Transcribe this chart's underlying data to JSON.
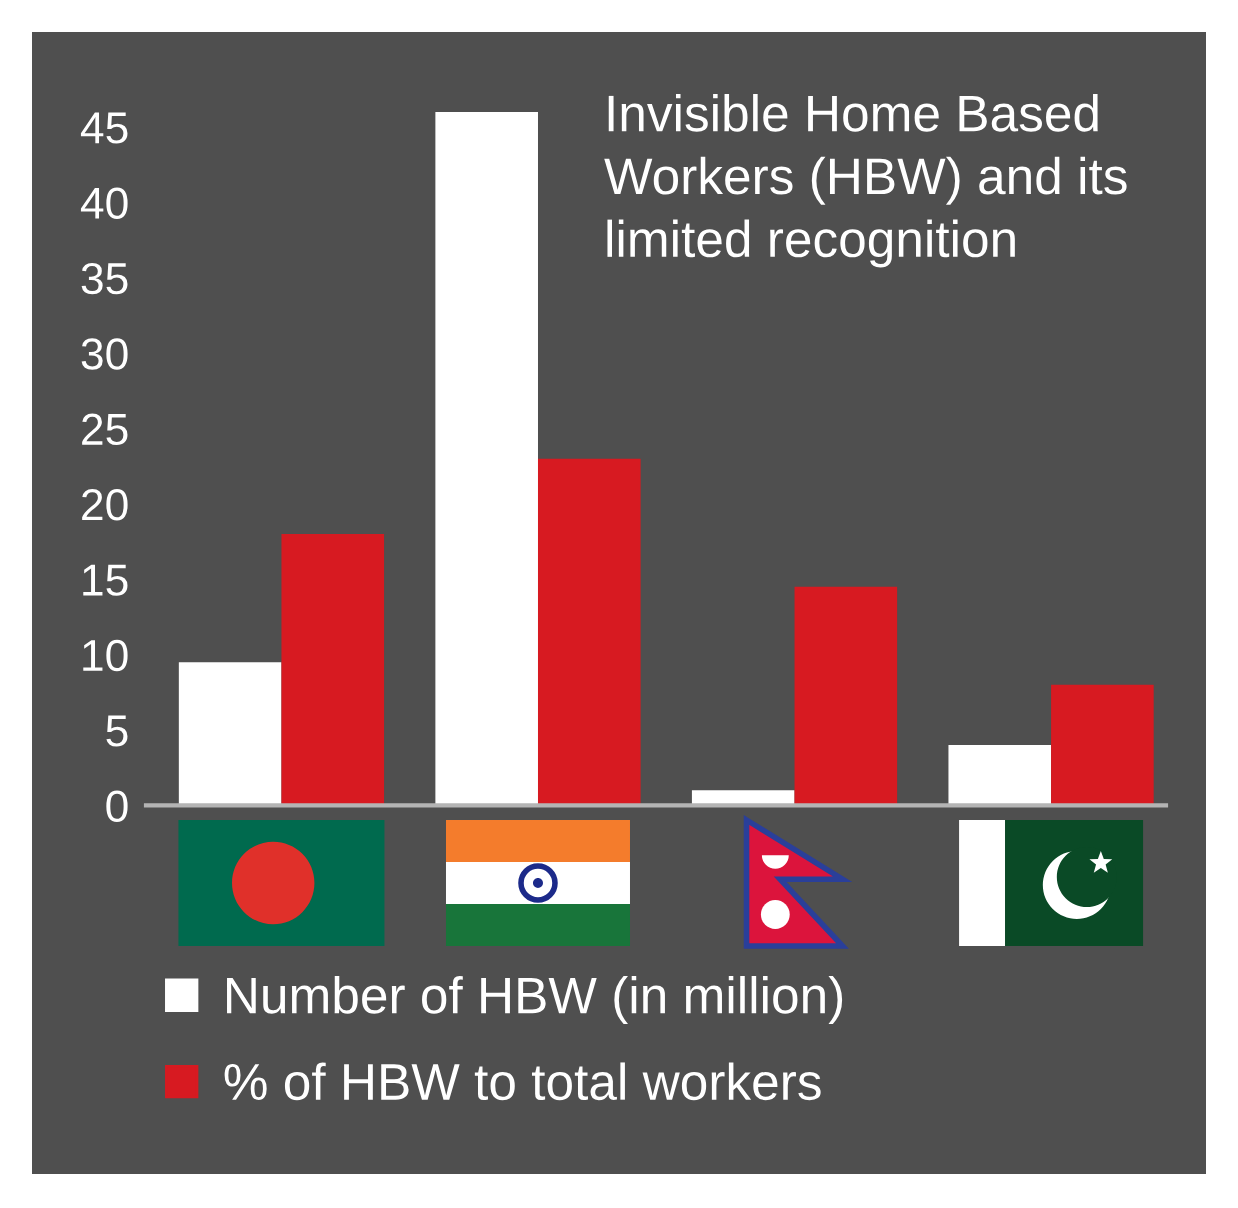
{
  "chart_data": {
    "type": "bar",
    "title": "Invisible Home Based Workers (HBW) and its limited recognition",
    "categories": [
      null,
      null,
      null,
      null
    ],
    "series": [
      {
        "name": "Number of HBW (in million)",
        "color": "#ffffff",
        "values": [
          9.5,
          46,
          1,
          4
        ]
      },
      {
        "name": "% of HBW to total workers",
        "color": "#d71a21",
        "values": [
          18,
          23,
          14.5,
          8
        ]
      }
    ],
    "ylim": [
      0,
      46
    ],
    "yticks": [
      0,
      5,
      10,
      15,
      20,
      25,
      30,
      35,
      40,
      45
    ],
    "legend": "bottom",
    "grid": false
  }
}
